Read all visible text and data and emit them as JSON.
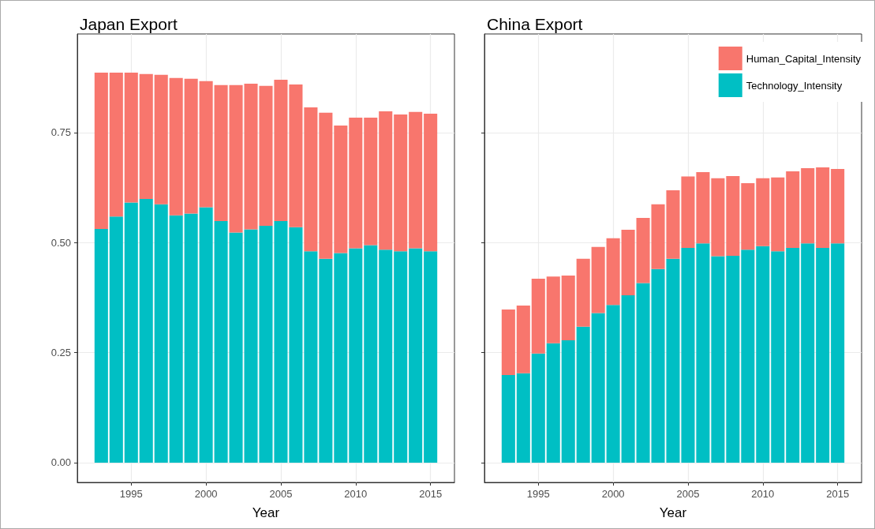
{
  "chart_data": [
    {
      "type": "bar",
      "title": "Japan Export",
      "xlabel": "Year",
      "stacked": true,
      "grid": true,
      "legend": false,
      "x": [
        1993,
        1994,
        1995,
        1996,
        1997,
        1998,
        1999,
        2000,
        2001,
        2002,
        2003,
        2004,
        2005,
        2006,
        2007,
        2008,
        2009,
        2010,
        2011,
        2012,
        2013,
        2014,
        2015
      ],
      "xlim": [
        1991.4,
        2016.6
      ],
      "xticks": [
        1995,
        2000,
        2005,
        2010,
        2015
      ],
      "ylim": [
        -0.045,
        0.974
      ],
      "yticks": [
        {
          "value": 0,
          "label": "0.00"
        },
        {
          "value": 0.25,
          "label": "0.25"
        },
        {
          "value": 0.5,
          "label": "0.50"
        },
        {
          "value": 0.75,
          "label": "0.75"
        }
      ],
      "series": [
        {
          "color": "#00bfc4",
          "values": [
            0.531,
            0.559,
            0.591,
            0.599,
            0.587,
            0.562,
            0.566,
            0.58,
            0.549,
            0.523,
            0.53,
            0.538,
            0.549,
            0.535,
            0.48,
            0.463,
            0.476,
            0.487,
            0.494,
            0.484,
            0.48,
            0.487,
            0.48
          ]
        },
        {
          "color": "#f8766d",
          "values": [
            0.355,
            0.327,
            0.295,
            0.284,
            0.294,
            0.312,
            0.306,
            0.287,
            0.309,
            0.335,
            0.331,
            0.318,
            0.321,
            0.324,
            0.327,
            0.332,
            0.29,
            0.297,
            0.29,
            0.314,
            0.311,
            0.31,
            0.313
          ]
        }
      ]
    },
    {
      "type": "bar",
      "title": "China Export",
      "xlabel": "Year",
      "stacked": true,
      "grid": true,
      "legend": "top right",
      "tick_labels": "x",
      "x": [
        1993,
        1994,
        1995,
        1996,
        1997,
        1998,
        1999,
        2000,
        2001,
        2002,
        2003,
        2004,
        2005,
        2006,
        2007,
        2008,
        2009,
        2010,
        2011,
        2012,
        2013,
        2014,
        2015
      ],
      "xlim": [
        1991.4,
        2016.6
      ],
      "xticks": [
        1995,
        2000,
        2005,
        2010,
        2015
      ],
      "ylim": [
        -0.045,
        0.974
      ],
      "yticks": [
        0,
        0.25,
        0.5,
        0.75
      ],
      "series": [
        {
          "name": "Technology_Intensity",
          "color": "#00bfc4",
          "values": [
            0.199,
            0.203,
            0.248,
            0.271,
            0.278,
            0.309,
            0.34,
            0.358,
            0.38,
            0.408,
            0.44,
            0.463,
            0.488,
            0.498,
            0.469,
            0.47,
            0.484,
            0.492,
            0.48,
            0.488,
            0.498,
            0.488,
            0.498
          ]
        },
        {
          "name": "Human_Capital_Intensity",
          "color": "#f8766d",
          "values": [
            0.149,
            0.154,
            0.17,
            0.152,
            0.147,
            0.154,
            0.15,
            0.152,
            0.149,
            0.148,
            0.147,
            0.156,
            0.162,
            0.162,
            0.177,
            0.181,
            0.151,
            0.154,
            0.168,
            0.174,
            0.171,
            0.183,
            0.169
          ]
        }
      ]
    }
  ]
}
